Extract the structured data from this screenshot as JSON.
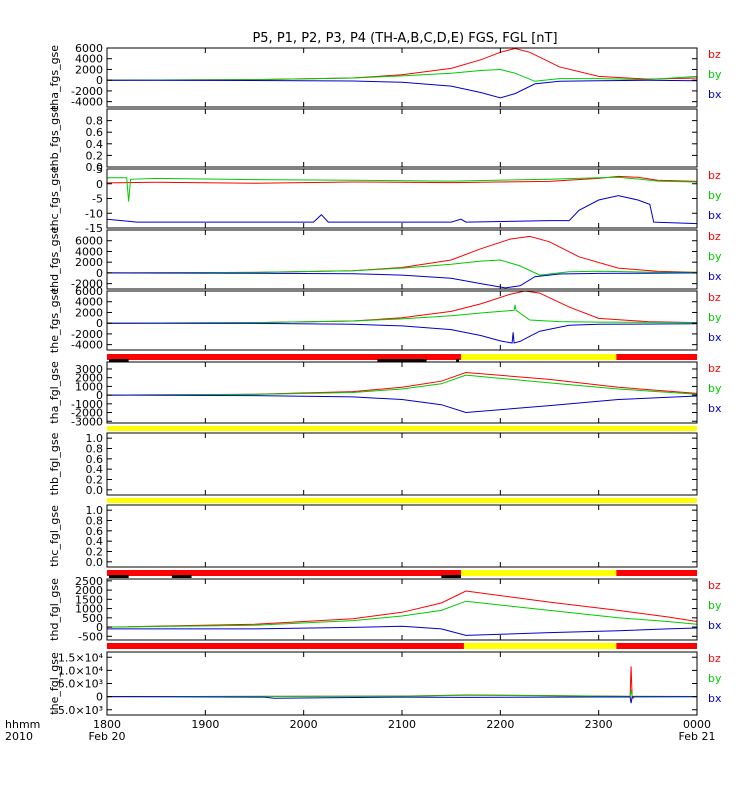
{
  "title": "P5, P1, P2, P3, P4 (TH-A,B,C,D,E) FGS, FGL [nT]",
  "x_axis": {
    "corner_labels": [
      "hhmm",
      "2010"
    ],
    "ticks": [
      {
        "value": 1800,
        "label": "1800",
        "sub": "Feb 20"
      },
      {
        "value": 1900,
        "label": "1900",
        "sub": ""
      },
      {
        "value": 2000,
        "label": "2000",
        "sub": ""
      },
      {
        "value": 2100,
        "label": "2100",
        "sub": ""
      },
      {
        "value": 2200,
        "label": "2200",
        "sub": ""
      },
      {
        "value": 2300,
        "label": "2300",
        "sub": ""
      },
      {
        "value": 2400,
        "label": "0000",
        "sub": "Feb 21"
      }
    ]
  },
  "colors": {
    "bz": "#ff0000",
    "by": "#00cc00",
    "bx": "#0000cc",
    "bar_red": "#ff0000",
    "bar_yellow": "#ffff00",
    "bar_black": "#000000"
  },
  "chart_data": [
    {
      "type": "line",
      "ylabel": "tha_fgs_gse",
      "ylim": [
        -5000,
        6000
      ],
      "yticks": [
        {
          "v": 6000,
          "t": "6000"
        },
        {
          "v": 4000,
          "t": "4000"
        },
        {
          "v": 2000,
          "t": "2000"
        },
        {
          "v": 0,
          "t": "0"
        },
        {
          "v": -2000,
          "t": "-2000"
        },
        {
          "v": -4000,
          "t": "-4000"
        }
      ],
      "legend": [
        "bz",
        "by",
        "bx"
      ],
      "series": [
        {
          "name": "bz",
          "x": [
            1800,
            1950,
            2050,
            2100,
            2150,
            2180,
            2200,
            2215,
            2230,
            2260,
            2300,
            2350,
            2400
          ],
          "y": [
            0,
            100,
            400,
            1000,
            2200,
            3800,
            5200,
            5900,
            5200,
            2500,
            700,
            200,
            400
          ]
        },
        {
          "name": "by",
          "x": [
            1800,
            1950,
            2050,
            2100,
            2150,
            2180,
            2200,
            2215,
            2235,
            2260,
            2300,
            2350,
            2400
          ],
          "y": [
            0,
            100,
            400,
            800,
            1300,
            1800,
            2000,
            1300,
            -200,
            300,
            300,
            100,
            700
          ]
        },
        {
          "name": "bx",
          "x": [
            1800,
            1950,
            2050,
            2100,
            2150,
            2180,
            2200,
            2215,
            2235,
            2260,
            2300,
            2350,
            2400
          ],
          "y": [
            0,
            -50,
            -150,
            -400,
            -1100,
            -2300,
            -3300,
            -2500,
            -700,
            -200,
            -100,
            0,
            -100
          ]
        }
      ]
    },
    {
      "type": "line",
      "ylabel": "thb_fgs_gse",
      "ylim": [
        0,
        1
      ],
      "yticks": [
        {
          "v": 0.8,
          "t": "0.8"
        },
        {
          "v": 0.6,
          "t": "0.6"
        },
        {
          "v": 0.4,
          "t": "0.4"
        },
        {
          "v": 0.2,
          "t": "0.2"
        },
        {
          "v": 0.0,
          "t": "0.0"
        }
      ],
      "legend": [],
      "series": []
    },
    {
      "type": "line",
      "ylabel": "thc_fgs_gse",
      "ylim": [
        -15,
        5
      ],
      "yticks": [
        {
          "v": 5,
          "t": "5"
        },
        {
          "v": 0,
          "t": "0"
        },
        {
          "v": -5,
          "t": "-5"
        },
        {
          "v": -10,
          "t": "-10"
        },
        {
          "v": -15,
          "t": "-15"
        }
      ],
      "legend": [
        "bz",
        "by",
        "bx"
      ],
      "series": [
        {
          "name": "bz",
          "x": [
            1800,
            1850,
            1950,
            2050,
            2150,
            2250,
            2300,
            2320,
            2340,
            2360,
            2400
          ],
          "y": [
            0.3,
            0.5,
            0.2,
            0.6,
            0.4,
            0.8,
            1.8,
            2.5,
            2.2,
            1.2,
            0.8
          ]
        },
        {
          "name": "by",
          "x": [
            1800,
            1820,
            1822,
            1824,
            1850,
            1950,
            2050,
            2150,
            2250,
            2300,
            2320,
            2340,
            2360,
            2400
          ],
          "y": [
            2,
            2,
            -6,
            1.5,
            1.8,
            1.4,
            1.2,
            0.9,
            1.5,
            2.0,
            2.2,
            1.6,
            0.9,
            0.6
          ]
        },
        {
          "name": "bx",
          "x": [
            1800,
            1830,
            2010,
            2018,
            2025,
            2150,
            2160,
            2165,
            2250,
            2270,
            2280,
            2300,
            2320,
            2340,
            2352,
            2356,
            2400
          ],
          "y": [
            -12,
            -13,
            -13,
            -10.5,
            -13,
            -13,
            -12,
            -13,
            -12.5,
            -12.5,
            -9,
            -5.5,
            -4,
            -5.5,
            -7,
            -13,
            -13.5
          ]
        }
      ]
    },
    {
      "type": "line",
      "ylabel": "thd_fgs_gse",
      "ylim": [
        -3000,
        8000
      ],
      "yticks": [
        {
          "v": 6000,
          "t": "6000"
        },
        {
          "v": 4000,
          "t": "4000"
        },
        {
          "v": 2000,
          "t": "2000"
        },
        {
          "v": 0,
          "t": "0"
        },
        {
          "v": -2000,
          "t": "-2000"
        }
      ],
      "legend": [
        "bz",
        "by",
        "bx"
      ],
      "series": [
        {
          "name": "bz",
          "x": [
            1800,
            1950,
            2050,
            2100,
            2150,
            2180,
            2210,
            2230,
            2250,
            2280,
            2320,
            2360,
            2400
          ],
          "y": [
            0,
            100,
            400,
            1000,
            2400,
            4500,
            6300,
            6800,
            5800,
            3000,
            900,
            300,
            100
          ]
        },
        {
          "name": "by",
          "x": [
            1800,
            1950,
            2050,
            2100,
            2150,
            2180,
            2200,
            2220,
            2240,
            2270,
            2300,
            2350,
            2400
          ],
          "y": [
            0,
            100,
            400,
            900,
            1600,
            2200,
            2400,
            1300,
            -400,
            200,
            300,
            150,
            100
          ]
        },
        {
          "name": "bx",
          "x": [
            1800,
            1950,
            2050,
            2100,
            2150,
            2180,
            2205,
            2220,
            2235,
            2260,
            2300,
            2350,
            2400
          ],
          "y": [
            0,
            -50,
            -150,
            -400,
            -1000,
            -2000,
            -2800,
            -2400,
            -700,
            -200,
            -100,
            -50,
            0
          ]
        }
      ]
    },
    {
      "type": "line",
      "ylabel": "the_fgs_gse",
      "ylim": [
        -5000,
        6000
      ],
      "yticks": [
        {
          "v": 6000,
          "t": "6000"
        },
        {
          "v": 4000,
          "t": "4000"
        },
        {
          "v": 2000,
          "t": "2000"
        },
        {
          "v": 0,
          "t": "0"
        },
        {
          "v": -2000,
          "t": "-2000"
        },
        {
          "v": -4000,
          "t": "-4000"
        }
      ],
      "legend": [
        "bz",
        "by",
        "bx"
      ],
      "series": [
        {
          "name": "bz",
          "x": [
            1800,
            1950,
            2050,
            2100,
            2150,
            2180,
            2210,
            2225,
            2240,
            2270,
            2300,
            2350,
            2400
          ],
          "y": [
            0,
            100,
            400,
            1000,
            2200,
            3600,
            5400,
            6000,
            5600,
            3000,
            900,
            300,
            100
          ]
        },
        {
          "name": "by",
          "x": [
            1800,
            1950,
            2050,
            2100,
            2150,
            2180,
            2200,
            2214,
            2215,
            2216,
            2230,
            2260,
            2300,
            2400
          ],
          "y": [
            0,
            100,
            400,
            800,
            1400,
            1900,
            2200,
            2400,
            3400,
            2400,
            600,
            300,
            200,
            100
          ]
        },
        {
          "name": "bx",
          "x": [
            1800,
            1950,
            2050,
            2100,
            2150,
            2180,
            2200,
            2212,
            2213,
            2214,
            2220,
            2240,
            2270,
            2300,
            2400
          ],
          "y": [
            0,
            -50,
            -200,
            -500,
            -1200,
            -2300,
            -3300,
            -3700,
            -1700,
            -3700,
            -3400,
            -1500,
            -400,
            -200,
            -100
          ]
        }
      ]
    },
    {
      "type": "line",
      "ylabel": "tha_fgl_gse",
      "ylim": [
        -3200,
        3800
      ],
      "yticks": [
        {
          "v": 3000,
          "t": "3000"
        },
        {
          "v": 2000,
          "t": "2000"
        },
        {
          "v": 1000,
          "t": "1000"
        },
        {
          "v": 0,
          "t": "0"
        },
        {
          "v": -1000,
          "t": "-1000"
        },
        {
          "v": -2000,
          "t": "-2000"
        },
        {
          "v": -3000,
          "t": "-3000"
        }
      ],
      "legend": [
        "bz",
        "by",
        "bx"
      ],
      "series": [
        {
          "name": "bz",
          "x": [
            1800,
            1950,
            2050,
            2100,
            2140,
            2165,
            2250,
            2320,
            2400
          ],
          "y": [
            0,
            100,
            400,
            900,
            1600,
            2600,
            1800,
            900,
            200
          ]
        },
        {
          "name": "by",
          "x": [
            1800,
            1950,
            2050,
            2100,
            2140,
            2165,
            2250,
            2320,
            2400
          ],
          "y": [
            0,
            80,
            300,
            700,
            1300,
            2300,
            1400,
            700,
            100
          ]
        },
        {
          "name": "bx",
          "x": [
            1800,
            1950,
            2050,
            2100,
            2140,
            2165,
            2250,
            2320,
            2400
          ],
          "y": [
            0,
            -50,
            -200,
            -500,
            -1100,
            -2000,
            -1200,
            -500,
            -100
          ]
        }
      ]
    },
    {
      "type": "line",
      "ylabel": "thb_fgl_gse",
      "ylim": [
        -0.1,
        1.1
      ],
      "yticks": [
        {
          "v": 1.0,
          "t": "1.0"
        },
        {
          "v": 0.8,
          "t": "0.8"
        },
        {
          "v": 0.6,
          "t": "0.6"
        },
        {
          "v": 0.4,
          "t": "0.4"
        },
        {
          "v": 0.2,
          "t": "0.2"
        },
        {
          "v": 0.0,
          "t": "0.0"
        }
      ],
      "legend": [],
      "series": []
    },
    {
      "type": "line",
      "ylabel": "thc_fgl_gse",
      "ylim": [
        -0.1,
        1.1
      ],
      "yticks": [
        {
          "v": 1.0,
          "t": "1.0"
        },
        {
          "v": 0.8,
          "t": "0.8"
        },
        {
          "v": 0.6,
          "t": "0.6"
        },
        {
          "v": 0.4,
          "t": "0.4"
        },
        {
          "v": 0.2,
          "t": "0.2"
        },
        {
          "v": 0.0,
          "t": "0.0"
        }
      ],
      "legend": [],
      "series": []
    },
    {
      "type": "line",
      "ylabel": "thd_fgl_gse",
      "ylim": [
        -700,
        2600
      ],
      "yticks": [
        {
          "v": 2500,
          "t": "2500"
        },
        {
          "v": 2000,
          "t": "2000"
        },
        {
          "v": 1500,
          "t": "1500"
        },
        {
          "v": 1000,
          "t": "1000"
        },
        {
          "v": 500,
          "t": "500"
        },
        {
          "v": 0,
          "t": "0"
        },
        {
          "v": -500,
          "t": "-500"
        }
      ],
      "legend": [
        "bz",
        "by",
        "bx"
      ],
      "series": [
        {
          "name": "bz",
          "x": [
            1800,
            1950,
            2050,
            2100,
            2140,
            2165,
            2250,
            2320,
            2370,
            2400
          ],
          "y": [
            0,
            150,
            450,
            800,
            1300,
            1950,
            1350,
            900,
            550,
            300
          ]
        },
        {
          "name": "by",
          "x": [
            1800,
            1950,
            2050,
            2100,
            2140,
            2165,
            2250,
            2320,
            2370,
            2400
          ],
          "y": [
            0,
            100,
            350,
            600,
            900,
            1400,
            900,
            500,
            300,
            150
          ]
        },
        {
          "name": "bx",
          "x": [
            1800,
            1950,
            2050,
            2100,
            2140,
            2165,
            2250,
            2320,
            2370,
            2400
          ],
          "y": [
            -100,
            -100,
            -20,
            40,
            -100,
            -450,
            -300,
            -200,
            -100,
            -50
          ]
        }
      ]
    },
    {
      "type": "line",
      "ylabel": "the_fgl_gse",
      "ylim": [
        -7000,
        17000
      ],
      "yticks": [
        {
          "v": 15000,
          "t": "1.5×10⁴"
        },
        {
          "v": 10000,
          "t": "1.0×10⁴"
        },
        {
          "v": 5000,
          "t": "5.0×10³"
        },
        {
          "v": 0,
          "t": "0"
        },
        {
          "v": -5000,
          "t": "-5.0×10³"
        }
      ],
      "legend": [
        "bz",
        "by",
        "bx"
      ],
      "series": [
        {
          "name": "bz",
          "x": [
            1800,
            2100,
            2165,
            2250,
            2332,
            2333,
            2334,
            2335,
            2336,
            2400
          ],
          "y": [
            0,
            200,
            600,
            400,
            100,
            11500,
            200,
            -600,
            100,
            50
          ]
        },
        {
          "name": "by",
          "x": [
            1800,
            2100,
            2165,
            2250,
            2332,
            2333,
            2334,
            2400
          ],
          "y": [
            0,
            150,
            500,
            300,
            100,
            2500,
            100,
            50
          ]
        },
        {
          "name": "bx",
          "x": [
            1800,
            1960,
            1970,
            2100,
            2165,
            2250,
            2332,
            2333,
            2334,
            2400
          ],
          "y": [
            0,
            -200,
            -600,
            -200,
            -300,
            -200,
            -100,
            -2500,
            -100,
            -50
          ]
        }
      ]
    }
  ],
  "status_bars": [
    {
      "after_panel": 4,
      "segments": [
        {
          "x0": 1800,
          "x1": 2160,
          "c": "bar_red"
        },
        {
          "x0": 2160,
          "x1": 2318,
          "c": "bar_yellow"
        },
        {
          "x0": 2318,
          "x1": 2400,
          "c": "bar_red"
        }
      ],
      "blacks": [
        {
          "x0": 1802,
          "x1": 1822
        },
        {
          "x0": 2075,
          "x1": 2125
        },
        {
          "x0": 2155,
          "x1": 2158
        }
      ]
    },
    {
      "after_panel": 5,
      "segments": [
        {
          "x0": 1800,
          "x1": 2400,
          "c": "bar_yellow"
        }
      ],
      "blacks": []
    },
    {
      "after_panel": 6,
      "segments": [
        {
          "x0": 1800,
          "x1": 2400,
          "c": "bar_yellow"
        }
      ],
      "blacks": []
    },
    {
      "after_panel": 7,
      "segments": [
        {
          "x0": 1800,
          "x1": 2160,
          "c": "bar_red"
        },
        {
          "x0": 2160,
          "x1": 2318,
          "c": "bar_yellow"
        },
        {
          "x0": 2318,
          "x1": 2400,
          "c": "bar_red"
        }
      ],
      "blacks": [
        {
          "x0": 1802,
          "x1": 1822
        },
        {
          "x0": 1866,
          "x1": 1886
        },
        {
          "x0": 2140,
          "x1": 2160
        }
      ]
    },
    {
      "after_panel": 8,
      "segments": [
        {
          "x0": 1800,
          "x1": 2163,
          "c": "bar_red"
        },
        {
          "x0": 2163,
          "x1": 2318,
          "c": "bar_yellow"
        },
        {
          "x0": 2318,
          "x1": 2400,
          "c": "bar_red"
        }
      ],
      "blacks": []
    }
  ]
}
